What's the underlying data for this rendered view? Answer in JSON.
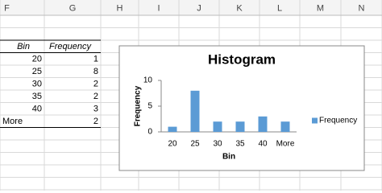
{
  "spreadsheet": {
    "column_headers": [
      "F",
      "G",
      "H",
      "I",
      "J",
      "K",
      "L",
      "M",
      "N"
    ],
    "table": {
      "header": [
        "Bin",
        "Frequency"
      ],
      "rows": [
        [
          20,
          1
        ],
        [
          25,
          8
        ],
        [
          30,
          2
        ],
        [
          35,
          2
        ],
        [
          40,
          3
        ],
        [
          "More",
          2
        ]
      ]
    }
  },
  "chart_data": {
    "type": "bar",
    "title": "Histogram",
    "categories": [
      "20",
      "25",
      "30",
      "35",
      "40",
      "More"
    ],
    "series": [
      {
        "name": "Frequency",
        "color": "#5b9bd5",
        "values": [
          1,
          8,
          2,
          2,
          3,
          2
        ]
      }
    ],
    "x_label": "Bin",
    "y_label": "Frequency",
    "ylim": [
      0,
      10
    ],
    "yticks": [
      0,
      5,
      10
    ],
    "grid": false,
    "legend": "right"
  }
}
